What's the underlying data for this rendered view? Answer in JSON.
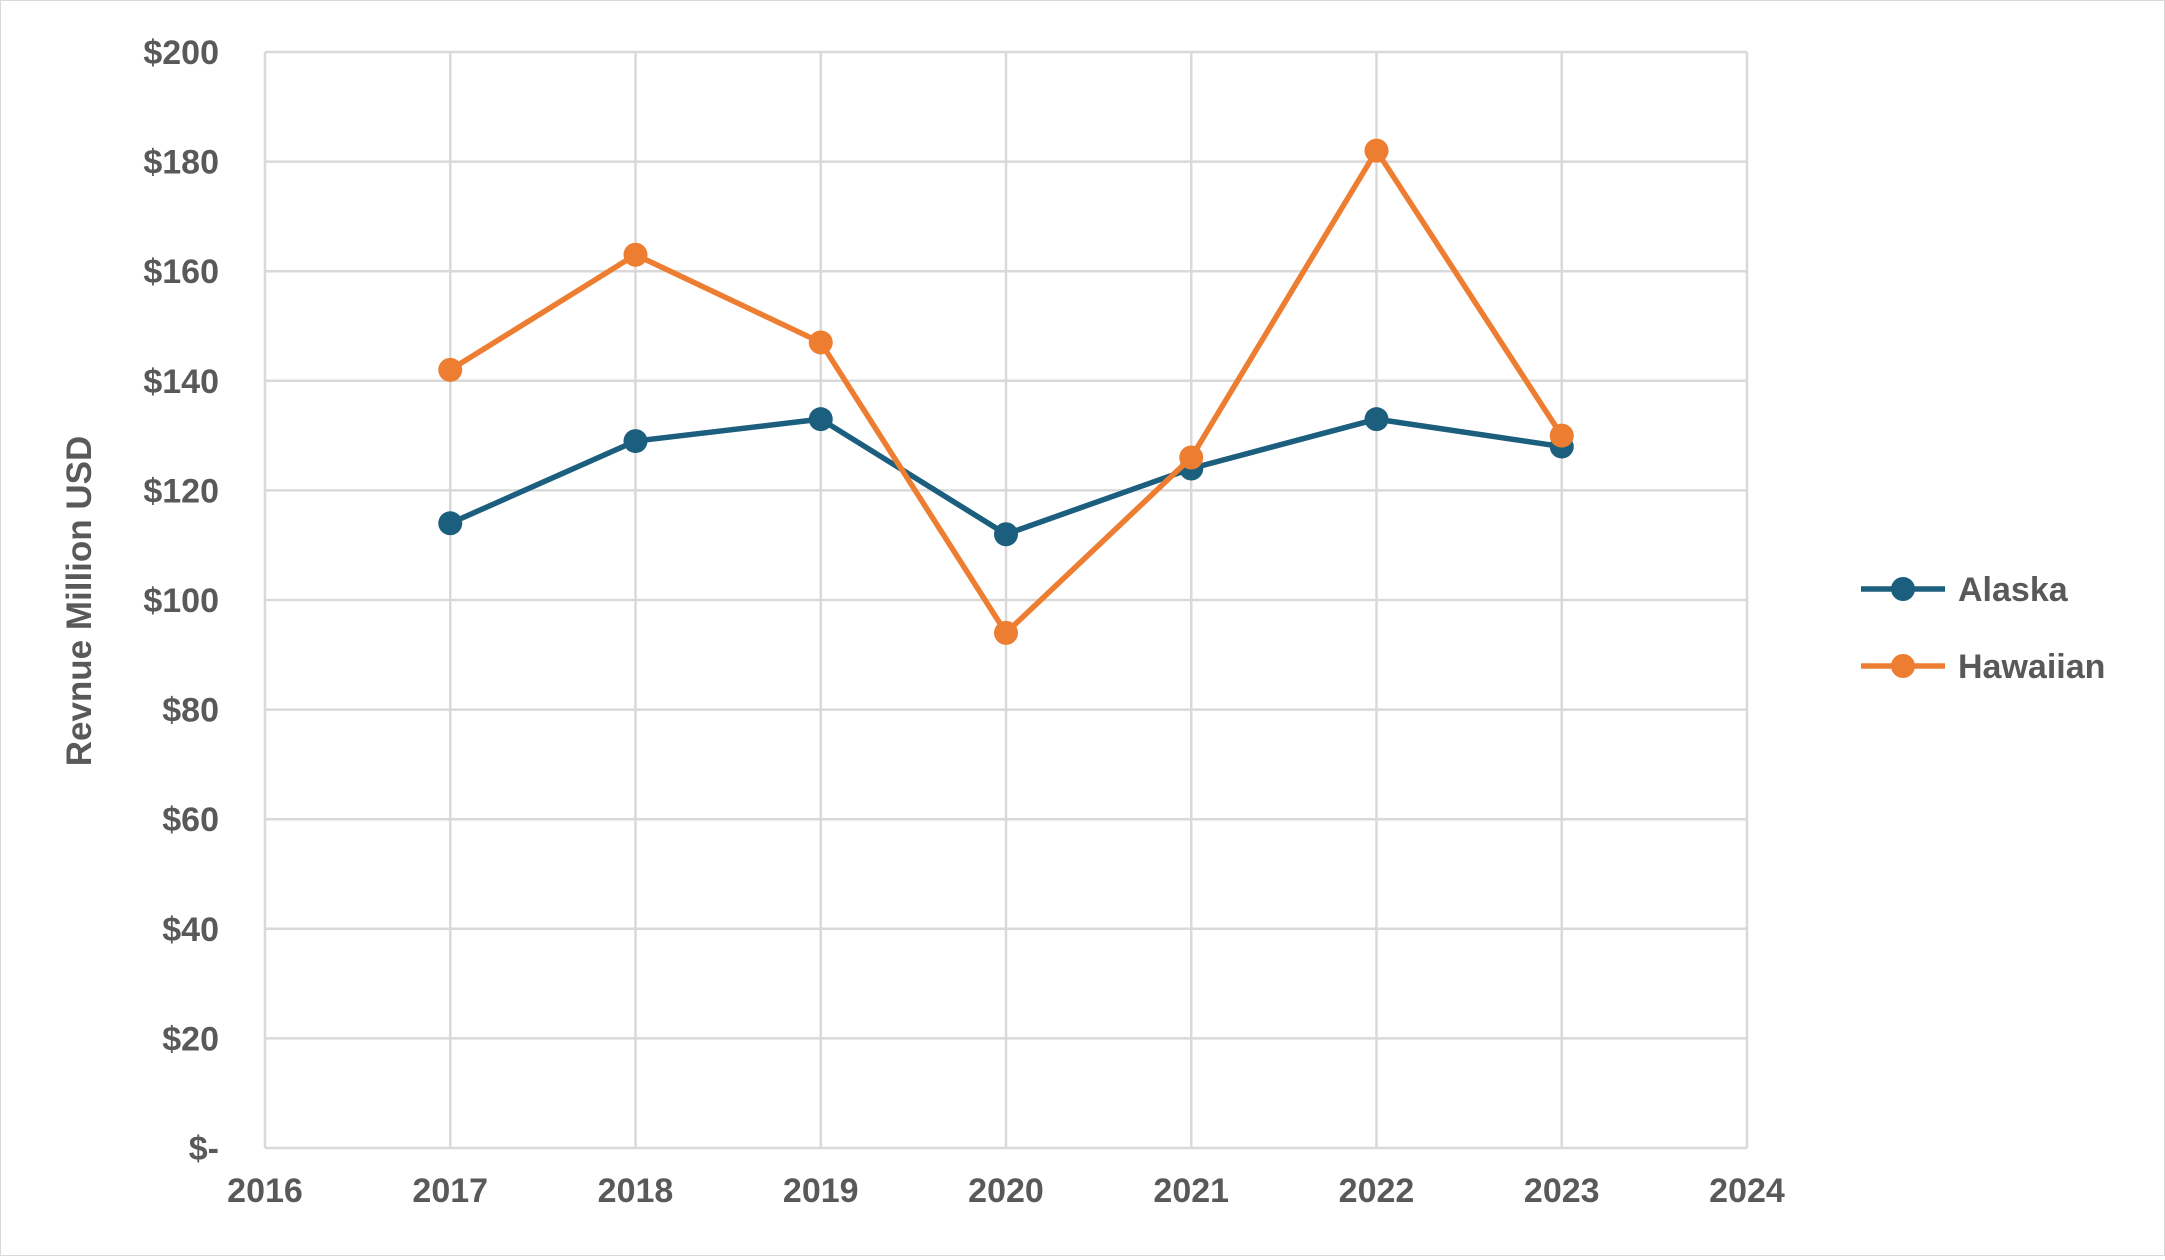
{
  "chart_data": {
    "type": "line",
    "title": "",
    "xlabel": "",
    "ylabel": "Revnue Million USD",
    "xlim": [
      2016,
      2024
    ],
    "ylim": [
      0,
      200
    ],
    "x_ticks": [
      2016,
      2017,
      2018,
      2019,
      2020,
      2021,
      2022,
      2023,
      2024
    ],
    "y_ticks": [
      0,
      20,
      40,
      60,
      80,
      100,
      120,
      140,
      160,
      180,
      200
    ],
    "y_tick_labels": [
      "$-",
      "$20",
      "$40",
      "$60",
      "$80",
      "$100",
      "$120",
      "$140",
      "$160",
      "$180",
      "$200"
    ],
    "grid": true,
    "legend_position": "right",
    "x": [
      2017,
      2018,
      2019,
      2020,
      2021,
      2022,
      2023
    ],
    "series": [
      {
        "name": "Alaska",
        "color": "#1b5e7e",
        "values": [
          114,
          129,
          133,
          112,
          124,
          133,
          128
        ]
      },
      {
        "name": "Hawaiian",
        "color": "#ed7d31",
        "values": [
          142,
          163,
          147,
          94,
          126,
          182,
          130
        ]
      }
    ]
  },
  "colors": {
    "grid": "#d9d9d9",
    "text": "#595959"
  }
}
